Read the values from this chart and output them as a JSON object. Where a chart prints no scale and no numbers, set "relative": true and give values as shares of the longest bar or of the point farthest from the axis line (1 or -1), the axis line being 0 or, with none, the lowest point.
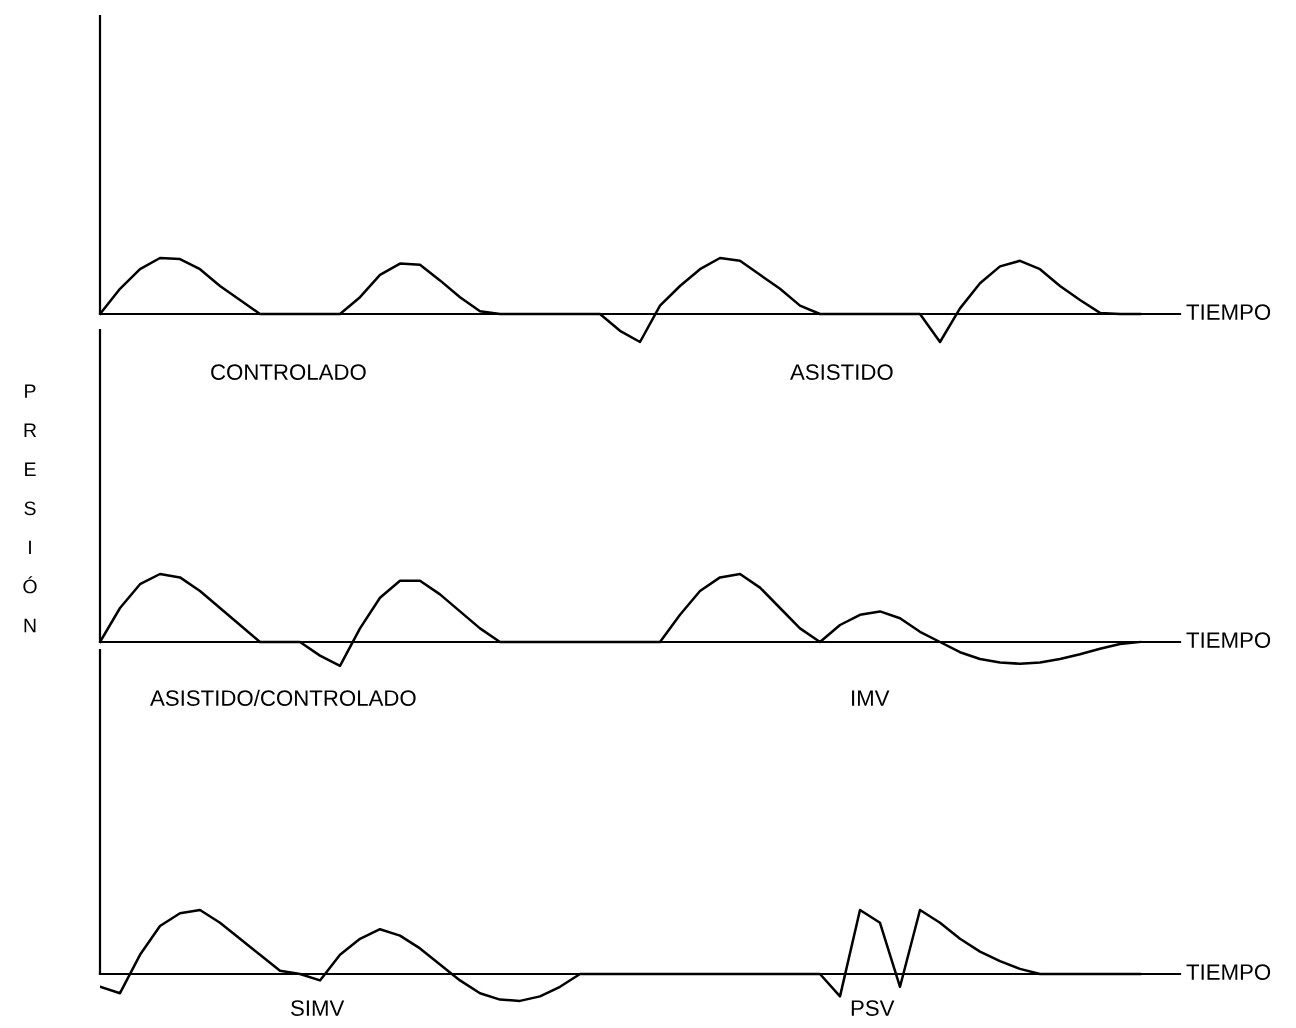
{
  "chart_data": [
    {
      "type": "line",
      "relative": true,
      "xlabel": "TIEMPO",
      "annotations": [
        "CONTROLADO",
        "ASISTIDO"
      ],
      "color": "#000000",
      "categories": [
        null,
        null,
        null,
        null,
        null,
        null,
        null,
        null,
        null,
        null,
        null,
        null,
        null,
        null,
        null,
        null,
        null,
        null,
        null,
        null,
        null,
        null,
        null,
        null,
        null,
        null,
        null,
        null,
        null,
        null,
        null,
        null,
        null,
        null,
        null,
        null,
        null,
        null,
        null,
        null,
        null,
        null,
        null,
        null,
        null,
        null,
        null,
        null,
        null,
        null,
        null,
        null,
        null
      ],
      "values": [
        0,
        0.45,
        0.8,
        1,
        0.98,
        0.8,
        0.5,
        0.25,
        0,
        0,
        0,
        0,
        0,
        0.3,
        0.7,
        0.9,
        0.88,
        0.6,
        0.3,
        0.05,
        0,
        0,
        0,
        0,
        0,
        0,
        -0.3,
        -0.5,
        0.15,
        0.5,
        0.8,
        1,
        0.95,
        0.7,
        0.45,
        0.15,
        0,
        0,
        0,
        0,
        0,
        0,
        -0.5,
        0.1,
        0.55,
        0.85,
        0.95,
        0.8,
        0.5,
        0.25,
        0.02,
        0,
        0
      ]
    },
    {
      "type": "line",
      "relative": true,
      "xlabel": "TIEMPO",
      "ylabel": "PRESIÓN",
      "annotations": [
        "ASISTIDO/CONTROLADO",
        "IMV"
      ],
      "color": "#000000",
      "categories": [
        null,
        null,
        null,
        null,
        null,
        null,
        null,
        null,
        null,
        null,
        null,
        null,
        null,
        null,
        null,
        null,
        null,
        null,
        null,
        null,
        null,
        null,
        null,
        null,
        null,
        null,
        null,
        null,
        null,
        null,
        null,
        null,
        null,
        null,
        null,
        null,
        null,
        null,
        null,
        null,
        null,
        null,
        null,
        null,
        null,
        null,
        null,
        null,
        null,
        null,
        null,
        null,
        null
      ],
      "values": [
        0,
        0.5,
        0.85,
        1,
        0.95,
        0.75,
        0.5,
        0.25,
        0,
        0,
        0,
        -0.2,
        -0.35,
        0.2,
        0.65,
        0.9,
        0.9,
        0.7,
        0.45,
        0.2,
        0,
        0,
        0,
        0,
        0,
        0,
        0,
        0,
        0,
        0.4,
        0.75,
        0.95,
        1,
        0.8,
        0.5,
        0.2,
        0,
        0.25,
        0.4,
        0.45,
        0.35,
        0.15,
        0,
        -0.15,
        -0.25,
        -0.3,
        -0.32,
        -0.3,
        -0.25,
        -0.18,
        -0.1,
        -0.03,
        0
      ]
    },
    {
      "type": "line",
      "relative": true,
      "xlabel": "TIEMPO",
      "annotations": [
        "SIMV",
        "PSV"
      ],
      "color": "#000000",
      "categories": [
        null,
        null,
        null,
        null,
        null,
        null,
        null,
        null,
        null,
        null,
        null,
        null,
        null,
        null,
        null,
        null,
        null,
        null,
        null,
        null,
        null,
        null,
        null,
        null,
        null,
        null,
        null,
        null,
        null,
        null,
        null,
        null,
        null,
        null,
        null,
        null,
        null,
        null,
        null,
        null,
        null,
        null,
        null,
        null,
        null,
        null,
        null,
        null,
        null,
        null,
        null,
        null,
        null
      ],
      "values": [
        -0.2,
        -0.3,
        0.3,
        0.75,
        0.95,
        1,
        0.8,
        0.55,
        0.3,
        0.05,
        0,
        -0.1,
        0.3,
        0.55,
        0.7,
        0.6,
        0.4,
        0.15,
        -0.1,
        -0.3,
        -0.4,
        -0.42,
        -0.35,
        -0.2,
        0,
        0,
        0,
        0,
        0,
        0,
        0,
        0,
        0,
        0,
        0,
        0,
        0,
        -0.35,
        1,
        0.8,
        -0.2,
        1,
        0.8,
        0.55,
        0.35,
        0.2,
        0.08,
        0,
        0,
        0,
        0,
        0,
        0
      ]
    }
  ]
}
